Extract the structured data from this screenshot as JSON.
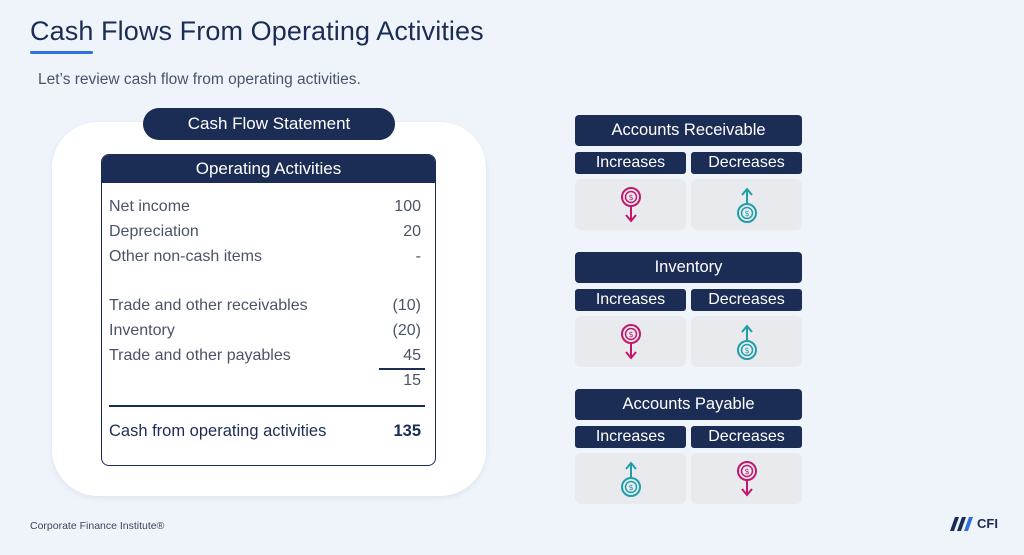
{
  "header": {
    "title": "Cash Flows From Operating Activities",
    "subtitle": "Let’s review cash flow from operating activities."
  },
  "statement": {
    "title": "Cash Flow Statement",
    "section_title": "Operating Activities",
    "rows": [
      {
        "label": "Net income",
        "value": "100"
      },
      {
        "label": "Depreciation",
        "value": "20"
      },
      {
        "label": "Other non-cash items",
        "value": "-"
      },
      {
        "label": "Trade and other receivables",
        "value": "(10)"
      },
      {
        "label": "Inventory",
        "value": "(20)"
      },
      {
        "label": "Trade and other payables",
        "value": "45"
      }
    ],
    "subtotal": "15",
    "total": {
      "label": "Cash from operating activities",
      "value": "135"
    }
  },
  "impacts": [
    {
      "title": "Accounts Receivable",
      "increases_label": "Increases",
      "decreases_label": "Decreases",
      "increases_icon": "cash-down-icon",
      "decreases_icon": "cash-up-icon"
    },
    {
      "title": "Inventory",
      "increases_label": "Increases",
      "decreases_label": "Decreases",
      "increases_icon": "cash-down-icon",
      "decreases_icon": "cash-up-icon"
    },
    {
      "title": "Accounts Payable",
      "increases_label": "Increases",
      "decreases_label": "Decreases",
      "increases_icon": "cash-up-icon",
      "decreases_icon": "cash-down-icon"
    }
  ],
  "colors": {
    "navy": "#1C2D55",
    "accent_blue": "#2F6FE0",
    "cash_down": "#C2186B",
    "cash_up": "#1E9FA8",
    "background": "#EEF4FA"
  },
  "footer": {
    "copyright": "Corporate Finance Institute®",
    "logo_text": "CFI"
  }
}
